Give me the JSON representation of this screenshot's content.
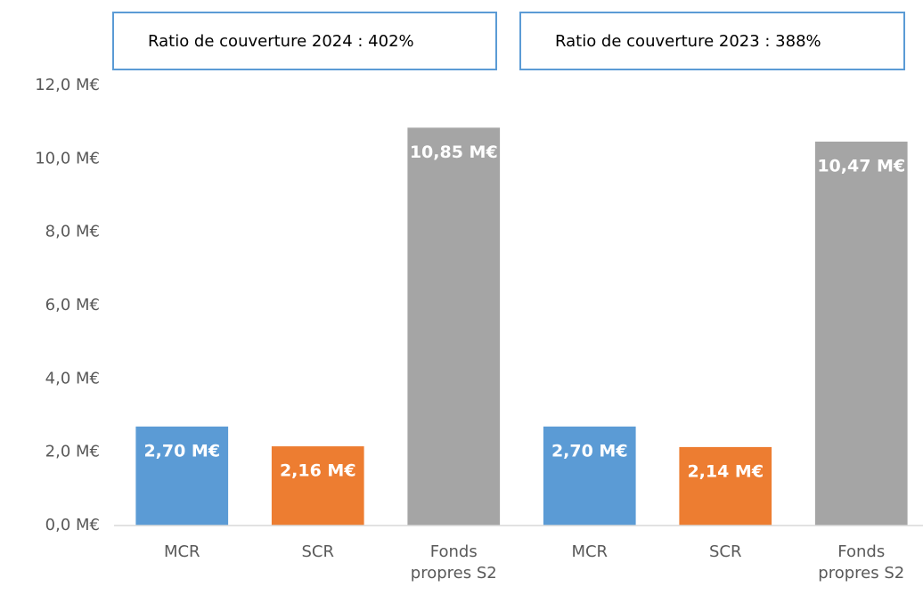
{
  "chart_data": {
    "type": "bar",
    "annotations": [
      "Ratio de couverture 2024 : 402%",
      "Ratio de couverture 2023 : 388%"
    ],
    "categories": [
      "MCR",
      "SCR",
      "Fonds propres S2",
      "MCR",
      "SCR",
      "Fonds propres S2"
    ],
    "values": [
      2.7,
      2.16,
      10.85,
      2.7,
      2.14,
      10.47
    ],
    "value_labels": [
      "2,70 M€",
      "2,16 M€",
      "10,85 M€",
      "2,70 M€",
      "2,14 M€",
      "10,47 M€"
    ],
    "colors": [
      "#5b9bd5",
      "#ed7d31",
      "#a5a5a5",
      "#5b9bd5",
      "#ed7d31",
      "#a5a5a5"
    ],
    "ylim": [
      0,
      12
    ],
    "yticks": [
      {
        "value": 0,
        "label": "0,0 M€"
      },
      {
        "value": 2,
        "label": "2,0 M€"
      },
      {
        "value": 4,
        "label": "4,0 M€"
      },
      {
        "value": 6,
        "label": "6,0 M€"
      },
      {
        "value": 8,
        "label": "8,0 M€"
      },
      {
        "value": 10,
        "label": "10,0 M€"
      },
      {
        "value": 12,
        "label": "12,0 M€"
      }
    ],
    "grid": false
  }
}
